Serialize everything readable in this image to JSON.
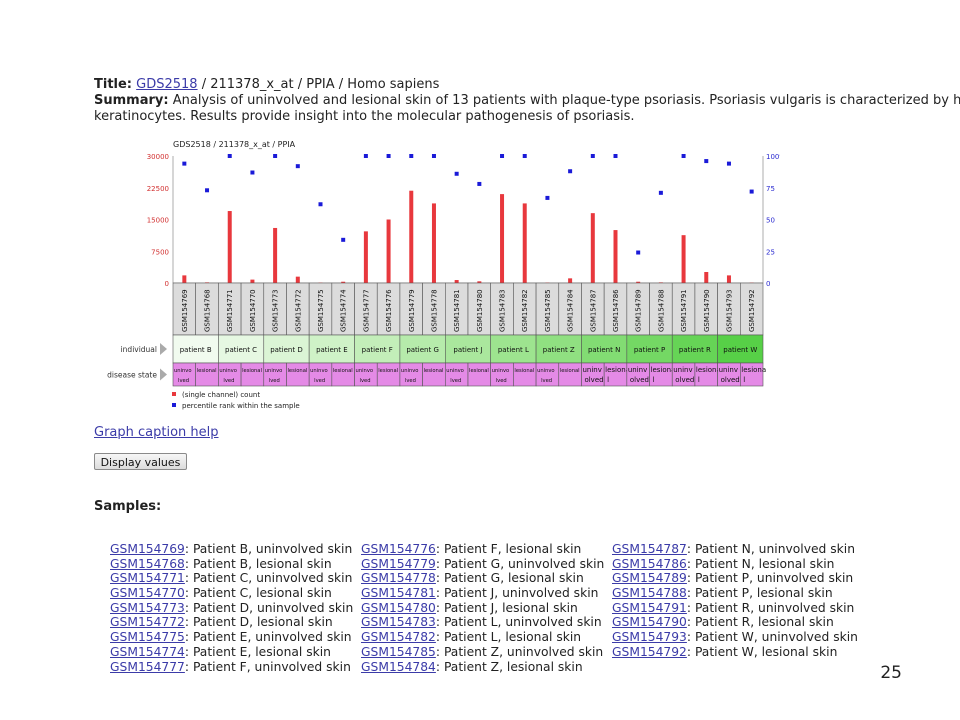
{
  "header": {
    "title_label": "Title:",
    "title_link": "GDS2518",
    "title_rest": " / 211378_x_at / PPIA / Homo sapiens",
    "summary_label": "Summary:",
    "summary_line1": "Analysis of uninvolved and lesional skin of 13 patients with plaque-type psoriasis. Psoriasis vulgaris is characterized by h",
    "summary_line2": "keratinocytes. Results provide insight into the molecular pathogenesis of psoriasis."
  },
  "chart_data": {
    "type": "bar",
    "title": "GDS2518 / 211378_x_at / PPIA",
    "left_axis_ticks": [
      "30000",
      "22500",
      "15000",
      "7500",
      "0"
    ],
    "right_axis_ticks": [
      "100%",
      "75",
      "50",
      "25",
      "0"
    ],
    "ylim_left": [
      0,
      30000
    ],
    "ylim_right": [
      0,
      100
    ],
    "categories": [
      "GSM154769",
      "GSM154768",
      "GSM154771",
      "GSM154770",
      "GSM154773",
      "GSM154772",
      "GSM154775",
      "GSM154774",
      "GSM154777",
      "GSM154776",
      "GSM154779",
      "GSM154778",
      "GSM154781",
      "GSM154780",
      "GSM154783",
      "GSM154782",
      "GSM154785",
      "GSM154784",
      "GSM154787",
      "GSM154786",
      "GSM154789",
      "GSM154788",
      "GSM154791",
      "GSM154790",
      "GSM154793",
      "GSM154792"
    ],
    "series": [
      {
        "name": "(single channel) count",
        "color": "#e8383d",
        "values": [
          1800,
          150,
          17000,
          800,
          13000,
          1500,
          100,
          300,
          12200,
          15000,
          21800,
          18800,
          700,
          400,
          21000,
          18800,
          100,
          1100,
          16500,
          12500,
          300,
          150,
          11300,
          2600,
          1800,
          100
        ]
      },
      {
        "name": "percentile rank within the sample",
        "color": "#1a1ad8",
        "values": [
          94,
          73,
          100,
          87,
          100,
          92,
          62,
          34,
          100,
          100,
          100,
          100,
          86,
          78,
          100,
          100,
          67,
          88,
          100,
          100,
          24,
          71,
          100,
          96,
          94,
          72
        ]
      }
    ],
    "individual_label": "individual",
    "disease_label": "disease state",
    "individuals": [
      {
        "label": "patient B",
        "color": "#f1fbef"
      },
      {
        "label": "patient C",
        "color": "#e6f8e2"
      },
      {
        "label": "patient D",
        "color": "#dbf5d5"
      },
      {
        "label": "patient E",
        "color": "#cff2c7"
      },
      {
        "label": "patient F",
        "color": "#c3eeb9"
      },
      {
        "label": "patient G",
        "color": "#b6ebab"
      },
      {
        "label": "patient J",
        "color": "#aae79d"
      },
      {
        "label": "patient L",
        "color": "#9de48f"
      },
      {
        "label": "patient Z",
        "color": "#90e081"
      },
      {
        "label": "patient N",
        "color": "#82dc73"
      },
      {
        "label": "patient P",
        "color": "#74d864"
      },
      {
        "label": "patient R",
        "color": "#66d456"
      },
      {
        "label": "patient W",
        "color": "#57d047"
      }
    ],
    "disease_color": "#e48ae6",
    "disease_states": [
      [
        "uninvo",
        "lved"
      ],
      [
        "lesional",
        ""
      ],
      [
        "uninvo",
        "lved"
      ],
      [
        "lesional",
        ""
      ],
      [
        "uninvo",
        "lved"
      ],
      [
        "lesional",
        ""
      ],
      [
        "uninvo",
        "lved"
      ],
      [
        "lesional",
        ""
      ],
      [
        "uninvo",
        "lved"
      ],
      [
        "lesional",
        ""
      ],
      [
        "uninvo",
        "lved"
      ],
      [
        "lesional",
        ""
      ],
      [
        "uninvo",
        "lved"
      ],
      [
        "lesional",
        ""
      ],
      [
        "uninvo",
        "lved"
      ],
      [
        "lesional",
        ""
      ],
      [
        "uninvo",
        "lved"
      ],
      [
        "lesional",
        ""
      ],
      [
        "uninv",
        "olved"
      ],
      [
        "lesiona",
        "l"
      ],
      [
        "uninv",
        "olved"
      ],
      [
        "lesiona",
        "l"
      ],
      [
        "uninv",
        "olved"
      ],
      [
        "lesiona",
        "l"
      ],
      [
        "uninv",
        "olved"
      ],
      [
        "lesiona",
        "l"
      ]
    ],
    "legend": [
      "(single channel) count",
      "percentile rank within the sample"
    ],
    "grid": false
  },
  "caption_help": "Graph caption help",
  "display_button": "Display values",
  "samples_title": "Samples:",
  "samples": [
    [
      {
        "id": "GSM154769",
        "desc": ": Patient B, uninvolved skin"
      },
      {
        "id": "GSM154768",
        "desc": ": Patient B, lesional skin"
      },
      {
        "id": "GSM154771",
        "desc": ": Patient C, uninvolved skin"
      },
      {
        "id": "GSM154770",
        "desc": ": Patient C, lesional skin"
      },
      {
        "id": "GSM154773",
        "desc": ": Patient D, uninvolved skin"
      },
      {
        "id": "GSM154772",
        "desc": ": Patient D, lesional skin"
      },
      {
        "id": "GSM154775",
        "desc": ": Patient E, uninvolved skin"
      },
      {
        "id": "GSM154774",
        "desc": ": Patient E, lesional skin"
      },
      {
        "id": "GSM154777",
        "desc": ": Patient F, uninvolved skin"
      }
    ],
    [
      {
        "id": "GSM154776",
        "desc": ": Patient F, lesional skin"
      },
      {
        "id": "GSM154779",
        "desc": ": Patient G, uninvolved skin"
      },
      {
        "id": "GSM154778",
        "desc": ": Patient G, lesional skin"
      },
      {
        "id": "GSM154781",
        "desc": ": Patient J, uninvolved skin"
      },
      {
        "id": "GSM154780",
        "desc": ": Patient J, lesional skin"
      },
      {
        "id": "GSM154783",
        "desc": ": Patient L, uninvolved skin"
      },
      {
        "id": "GSM154782",
        "desc": ": Patient L, lesional skin"
      },
      {
        "id": "GSM154785",
        "desc": ": Patient Z, uninvolved skin"
      },
      {
        "id": "GSM154784",
        "desc": ": Patient Z, lesional skin"
      }
    ],
    [
      {
        "id": "GSM154787",
        "desc": ": Patient N, uninvolved skin"
      },
      {
        "id": "GSM154786",
        "desc": ": Patient N, lesional skin"
      },
      {
        "id": "GSM154789",
        "desc": ": Patient P, uninvolved skin"
      },
      {
        "id": "GSM154788",
        "desc": ": Patient P, lesional skin"
      },
      {
        "id": "GSM154791",
        "desc": ": Patient R, uninvolved skin"
      },
      {
        "id": "GSM154790",
        "desc": ": Patient R, lesional skin"
      },
      {
        "id": "GSM154793",
        "desc": ": Patient W, uninvolved skin"
      },
      {
        "id": "GSM154792",
        "desc": ": Patient W, lesional skin"
      }
    ]
  ],
  "page_number": "25"
}
